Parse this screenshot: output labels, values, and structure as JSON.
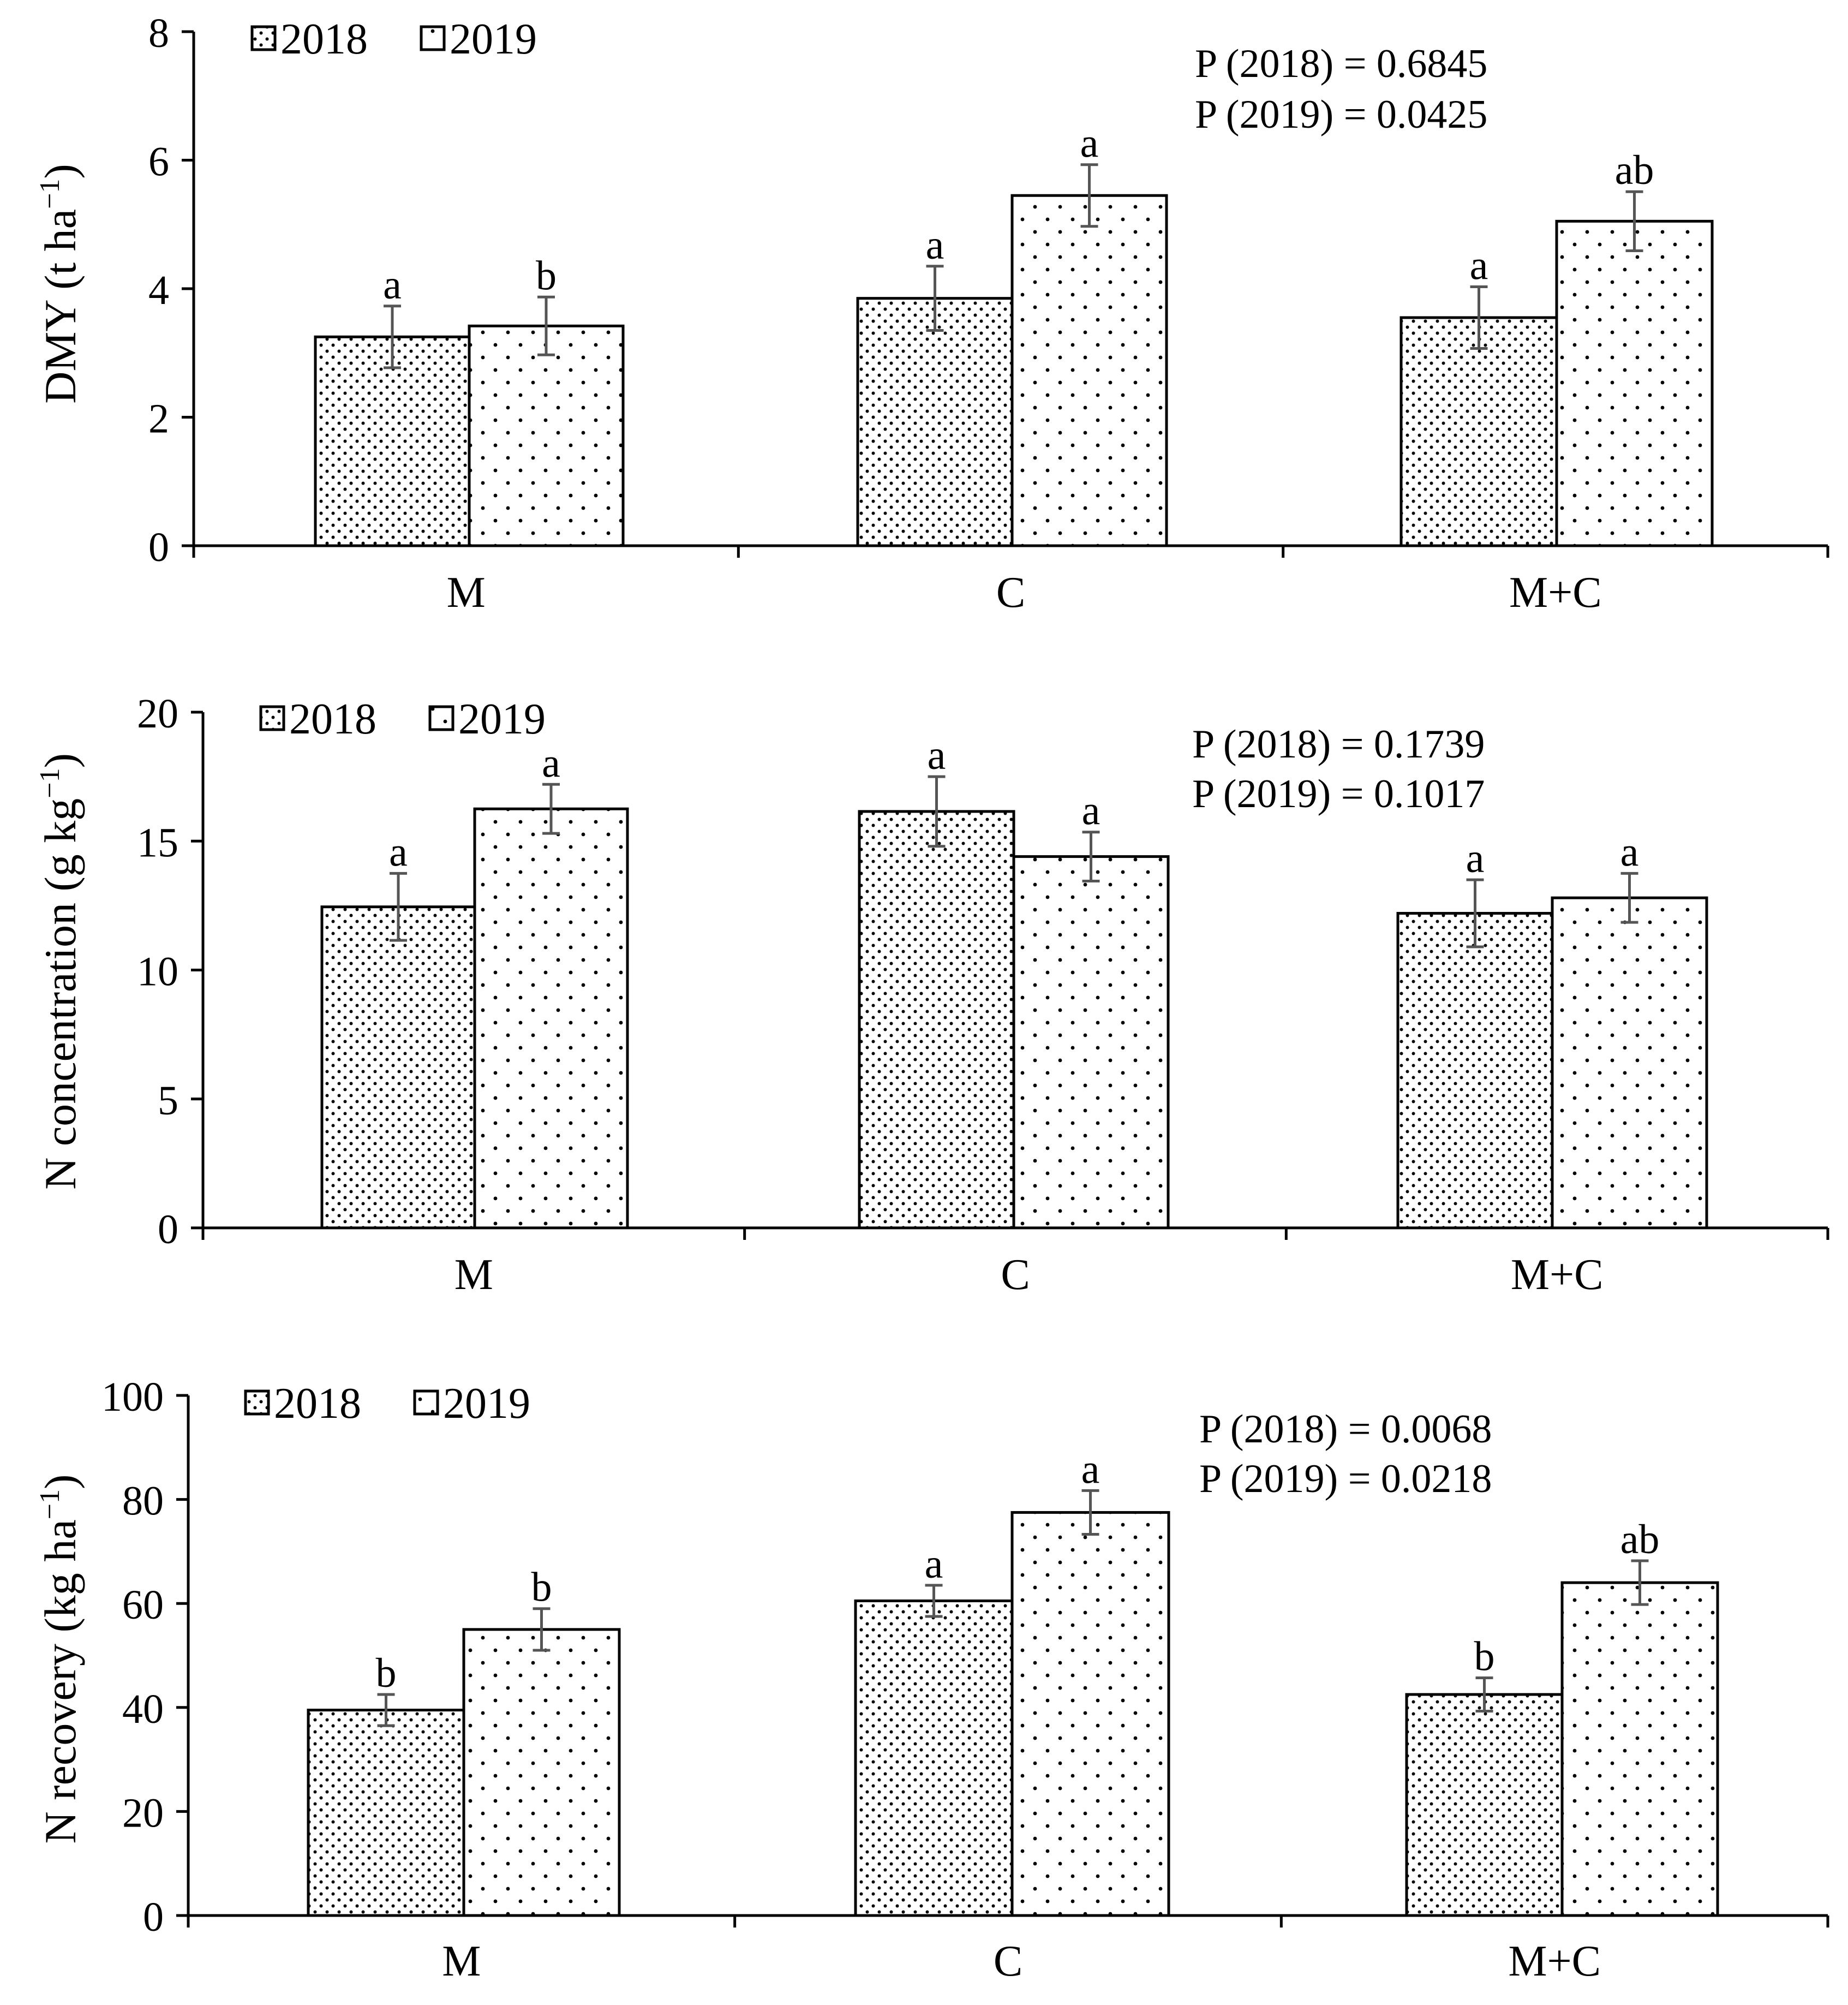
{
  "colors": {
    "axis": "#000000",
    "error_bar": "#555555",
    "bar_fill": "#ffffff",
    "bar_stroke": "#000000"
  },
  "chart_data": [
    {
      "type": "bar",
      "ylabel": "DMY (t ha",
      "ylabel_sup": "−1",
      "ylabel_end": ")",
      "categories": [
        "M",
        "C",
        "M+C"
      ],
      "ylim": [
        0,
        8
      ],
      "yticks": [
        0,
        2,
        4,
        6,
        8
      ],
      "legend_position": "top-left",
      "series": [
        {
          "name": "2018",
          "pattern": "dense-dots",
          "values": [
            3.25,
            3.85,
            3.55
          ],
          "errors": [
            0.48,
            0.5,
            0.48
          ],
          "letters": [
            "a",
            "a",
            "a"
          ]
        },
        {
          "name": "2019",
          "pattern": "sparse-dots",
          "values": [
            3.42,
            5.45,
            5.05
          ],
          "errors": [
            0.45,
            0.48,
            0.46
          ],
          "letters": [
            "b",
            "a",
            "ab"
          ]
        }
      ],
      "annotations": [
        "P (2018) = 0.6845",
        "P (2019) = 0.0425"
      ]
    },
    {
      "type": "bar",
      "ylabel": "N concentration (g kg",
      "ylabel_sup": "−1",
      "ylabel_end": ")",
      "categories": [
        "M",
        "C",
        "M+C"
      ],
      "ylim": [
        0,
        20
      ],
      "yticks": [
        0,
        5,
        10,
        15,
        20
      ],
      "legend_position": "top-left",
      "series": [
        {
          "name": "2018",
          "pattern": "dense-dots",
          "values": [
            12.45,
            16.15,
            12.2
          ],
          "errors": [
            1.3,
            1.35,
            1.3
          ],
          "letters": [
            "a",
            "a",
            "a"
          ]
        },
        {
          "name": "2019",
          "pattern": "sparse-dots",
          "values": [
            16.25,
            14.4,
            12.8
          ],
          "errors": [
            0.95,
            0.95,
            0.95
          ],
          "letters": [
            "a",
            "a",
            "a"
          ]
        }
      ],
      "annotations": [
        "P (2018) = 0.1739",
        "P (2019) = 0.1017"
      ]
    },
    {
      "type": "bar",
      "ylabel": "N recovery (kg ha",
      "ylabel_sup": "−1",
      "ylabel_end": ")",
      "categories": [
        "M",
        "C",
        "M+C"
      ],
      "ylim": [
        0,
        100
      ],
      "yticks": [
        0,
        20,
        40,
        60,
        80,
        100
      ],
      "legend_position": "top-left",
      "series": [
        {
          "name": "2018",
          "pattern": "dense-dots",
          "values": [
            39.5,
            60.5,
            42.5
          ],
          "errors": [
            3,
            3,
            3.2
          ],
          "letters": [
            "b",
            "a",
            "b"
          ]
        },
        {
          "name": "2019",
          "pattern": "sparse-dots",
          "values": [
            55,
            77.5,
            64
          ],
          "errors": [
            4,
            4.2,
            4.2
          ],
          "letters": [
            "b",
            "a",
            "ab"
          ]
        }
      ],
      "annotations": [
        "P (2018) = 0.0068",
        "P (2019) = 0.0218"
      ]
    }
  ]
}
